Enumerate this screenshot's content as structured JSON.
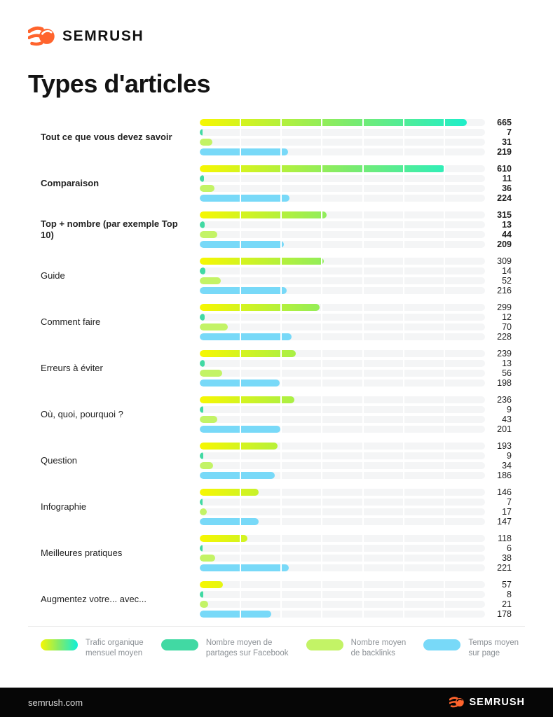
{
  "header": {
    "brand": "SEMRUSH",
    "title": "Types d'articles"
  },
  "chart_data": {
    "type": "bar",
    "orientation": "horizontal",
    "title": "Types d'articles",
    "axis_max": 710,
    "track_segments": 7,
    "series": [
      {
        "key": "traffic",
        "name": "Trafic organique mensuel moyen",
        "style": "gradient",
        "colors": [
          "#F7F701",
          "#7DEB6C",
          "#10EFD8"
        ]
      },
      {
        "key": "facebook",
        "name": "Nombre moyen de partages sur Facebook",
        "style": "solid",
        "color": "#41D9A3"
      },
      {
        "key": "backlinks",
        "name": "Nombre moyen de backlinks",
        "style": "solid",
        "color": "#C3F366"
      },
      {
        "key": "time",
        "name": "Temps moyen sur page",
        "style": "solid",
        "color": "#78D9F8"
      }
    ],
    "groups": [
      {
        "label": "Tout ce que vous devez savoir",
        "bold": true,
        "values": [
          665,
          7,
          31,
          219
        ]
      },
      {
        "label": "Comparaison",
        "bold": true,
        "values": [
          610,
          11,
          36,
          224
        ]
      },
      {
        "label": "Top + nombre (par exemple Top 10)",
        "bold": true,
        "values": [
          315,
          13,
          44,
          209
        ]
      },
      {
        "label": "Guide",
        "bold": false,
        "values": [
          309,
          14,
          52,
          216
        ]
      },
      {
        "label": "Comment faire",
        "bold": false,
        "values": [
          299,
          12,
          70,
          228
        ]
      },
      {
        "label": "Erreurs à éviter",
        "bold": false,
        "values": [
          239,
          13,
          56,
          198
        ]
      },
      {
        "label": "Où, quoi, pourquoi ?",
        "bold": false,
        "values": [
          236,
          9,
          43,
          201
        ]
      },
      {
        "label": "Question",
        "bold": false,
        "values": [
          193,
          9,
          34,
          186
        ]
      },
      {
        "label": "Infographie",
        "bold": false,
        "values": [
          146,
          7,
          17,
          147
        ]
      },
      {
        "label": "Meilleures pratiques",
        "bold": false,
        "values": [
          118,
          6,
          38,
          221
        ]
      },
      {
        "label": "Augmentez votre... avec...",
        "bold": false,
        "values": [
          57,
          8,
          21,
          178
        ]
      }
    ]
  },
  "legend": {
    "items": [
      {
        "swatch": "traffic",
        "lines": [
          "Trafic organique",
          "mensuel moyen"
        ]
      },
      {
        "swatch": "facebook",
        "lines": [
          "Nombre moyen de",
          "partages sur Facebook"
        ]
      },
      {
        "swatch": "backlinks",
        "lines": [
          "Nombre moyen",
          "de backlinks"
        ]
      },
      {
        "swatch": "time",
        "lines": [
          "Temps moyen",
          "sur page"
        ]
      }
    ]
  },
  "footer": {
    "url": "semrush.com",
    "brand": "SEMRUSH"
  },
  "colors": {
    "accent_orange": "#FF642D",
    "track": "#F4F5F6",
    "text_dark": "#1C1C1C",
    "legend_text": "#8C9196",
    "footer_bg": "#060606"
  }
}
